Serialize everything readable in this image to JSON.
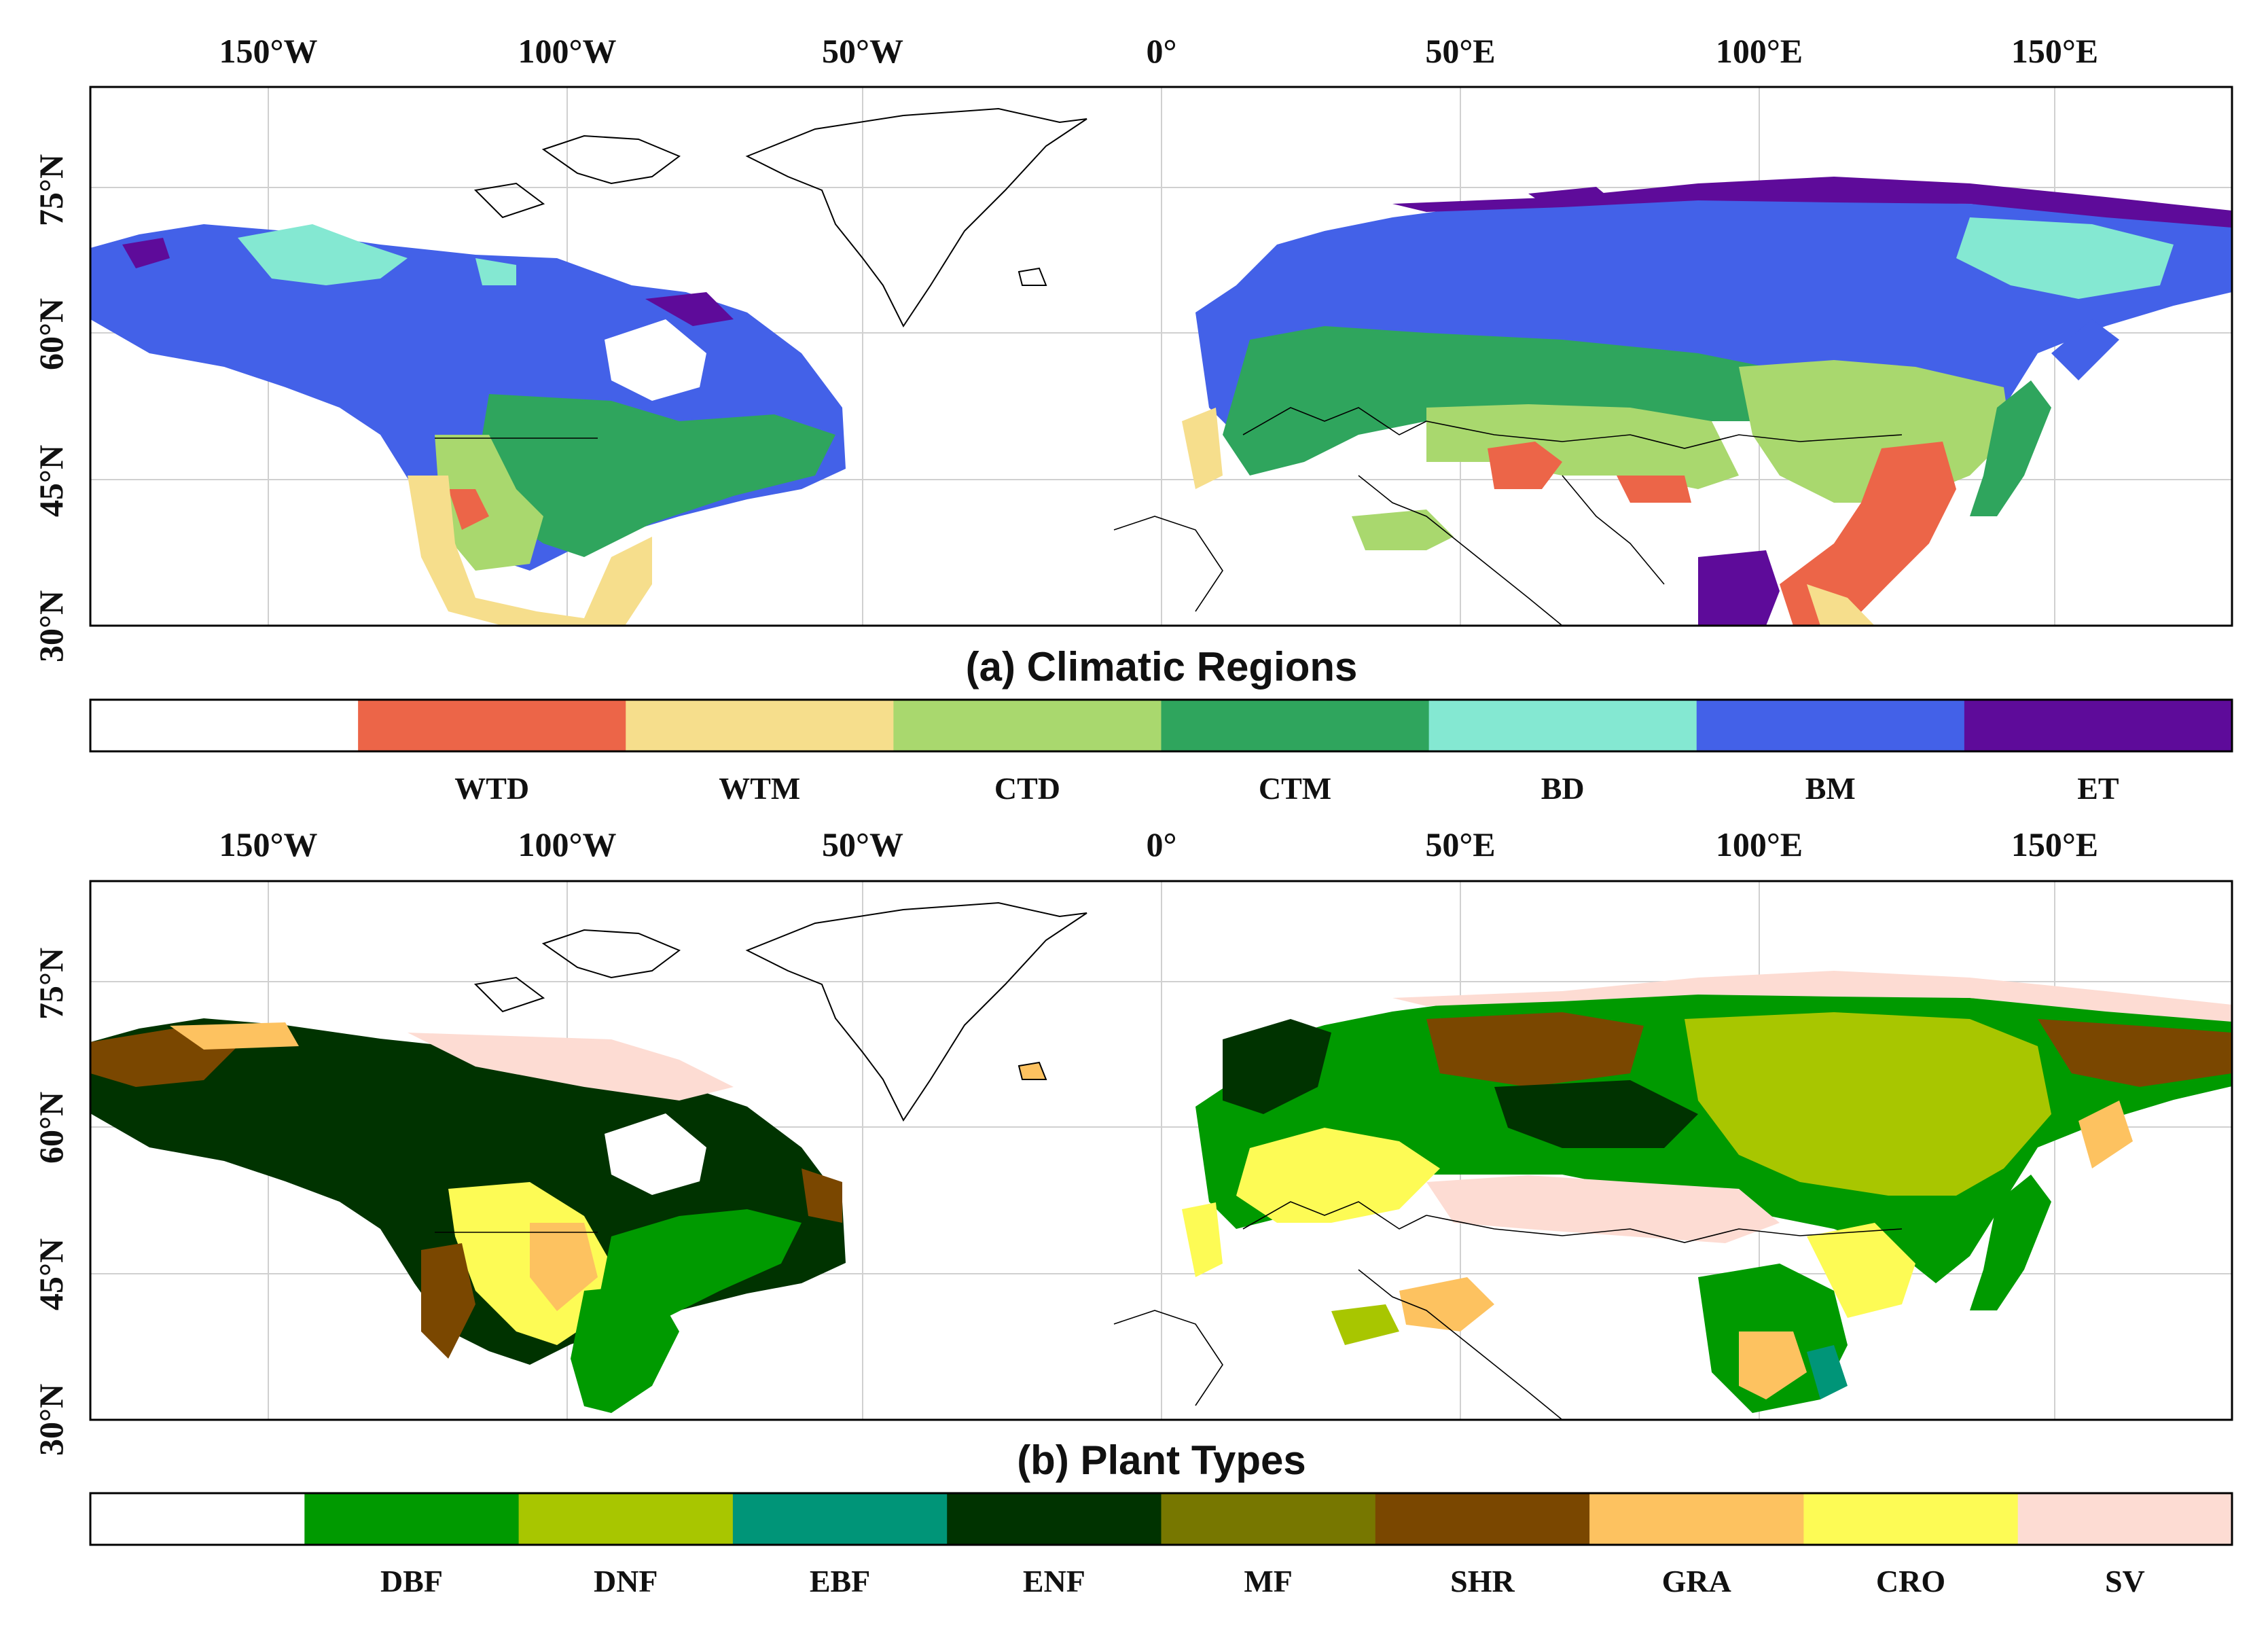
{
  "panels": [
    {
      "id": "a",
      "title": "(a) Climatic Regions",
      "lon_ticks": [
        "150°W",
        "100°W",
        "50°W",
        "0°",
        "50°E",
        "100°E",
        "150°E"
      ],
      "lat_ticks": [
        "75°N",
        "60°N",
        "45°N",
        "30°N"
      ],
      "legend": [
        {
          "label": "",
          "color": "#ffffff"
        },
        {
          "label": "WTD",
          "color": "#ec6548"
        },
        {
          "label": "WTM",
          "color": "#f6de8c"
        },
        {
          "label": "CTD",
          "color": "#a9d86e"
        },
        {
          "label": "CTM",
          "color": "#2fa55d"
        },
        {
          "label": "BD",
          "color": "#84e8d2"
        },
        {
          "label": "BM",
          "color": "#4361e8"
        },
        {
          "label": "ET",
          "color": "#5e0b9a"
        }
      ]
    },
    {
      "id": "b",
      "title": "(b) Plant Types",
      "lon_ticks": [
        "150°W",
        "100°W",
        "50°W",
        "0°",
        "50°E",
        "100°E",
        "150°E"
      ],
      "lat_ticks": [
        "75°N",
        "60°N",
        "45°N",
        "30°N"
      ],
      "legend": [
        {
          "label": "",
          "color": "#ffffff"
        },
        {
          "label": "DBF",
          "color": "#009a00"
        },
        {
          "label": "DNF",
          "color": "#a8c600"
        },
        {
          "label": "EBF",
          "color": "#009578"
        },
        {
          "label": "ENF",
          "color": "#003300"
        },
        {
          "label": "MF",
          "color": "#777700"
        },
        {
          "label": "SHR",
          "color": "#7a4700"
        },
        {
          "label": "GRA",
          "color": "#fdc260"
        },
        {
          "label": "CRO",
          "color": "#fdfb55"
        },
        {
          "label": "SV",
          "color": "#fddcd3"
        }
      ]
    }
  ]
}
